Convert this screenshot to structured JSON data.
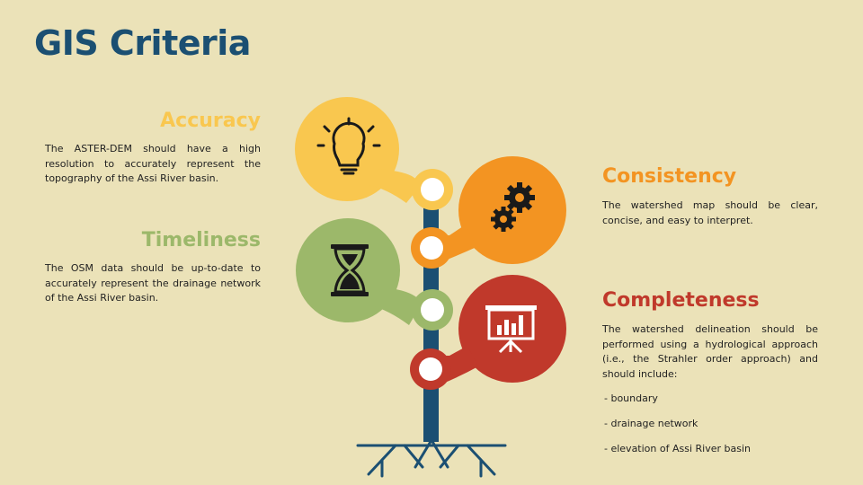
{
  "title": "GIS Criteria",
  "colors": {
    "accuracy": "#f9c74f",
    "consistency": "#f39422",
    "timeliness": "#9cb86a",
    "completeness": "#c0392b",
    "trunk": "#1b4f72",
    "background": "#ebe2b8"
  },
  "accuracy": {
    "heading": "Accuracy",
    "text": "The ASTER-DEM should have a high resolution to accurately represent the topography of the Assi River basin.",
    "icon": "lightbulb-icon"
  },
  "timeliness": {
    "heading": "Timeliness",
    "text": "The OSM data should be up-to-date to accurately represent the drainage network of the Assi River basin.",
    "icon": "hourglass-icon"
  },
  "consistency": {
    "heading": "Consistency",
    "text": "The watershed map should be clear, concise, and easy to interpret.",
    "icon": "gears-icon"
  },
  "completeness": {
    "heading": "Completeness",
    "text": "The watershed delineation should be performed using a hydrological approach (i.e., the Strahler order approach) and should include:",
    "icon": "presentation-chart-icon",
    "items": [
      " - boundary",
      " - drainage network",
      " - elevation of Assi River basin"
    ]
  }
}
